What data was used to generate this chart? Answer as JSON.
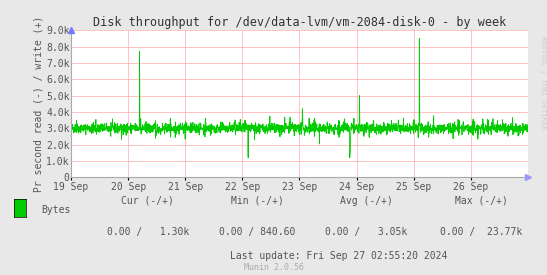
{
  "title": "Disk throughput for /dev/data-lvm/vm-2084-disk-0 - by week",
  "ylabel": "Pr second read (-) / write (+)",
  "bg_color": "#e8e8e8",
  "plot_bg_color": "#ffffff",
  "grid_color": "#ffaaaa",
  "line_color": "#00cc00",
  "ylim": [
    0,
    9000
  ],
  "yticks": [
    0,
    1000,
    2000,
    3000,
    4000,
    5000,
    6000,
    7000,
    8000,
    9000
  ],
  "ytick_labels": [
    "0",
    "1.0k",
    "2.0k",
    "3.0k",
    "4.0k",
    "5.0k",
    "6.0k",
    "7.0k",
    "8.0k",
    "9.0k"
  ],
  "xlabel_dates": [
    "19 Sep",
    "20 Sep",
    "21 Sep",
    "22 Sep",
    "23 Sep",
    "24 Sep",
    "25 Sep",
    "26 Sep"
  ],
  "legend_label": "Bytes",
  "legend_color": "#00cc00",
  "cur_minus": "0.00",
  "cur_plus": "1.30k",
  "min_minus": "0.00",
  "min_plus": "840.60",
  "avg_minus": "0.00",
  "avg_plus": "3.05k",
  "max_minus": "0.00",
  "max_plus": "23.77k",
  "last_update": "Last update: Fri Sep 27 02:55:20 2024",
  "munin_version": "Munin 2.0.56",
  "rrdtool_label": "RRDTOOL / TOBI OETIKER",
  "text_color": "#555555",
  "label_color": "#555555",
  "title_color": "#333333"
}
